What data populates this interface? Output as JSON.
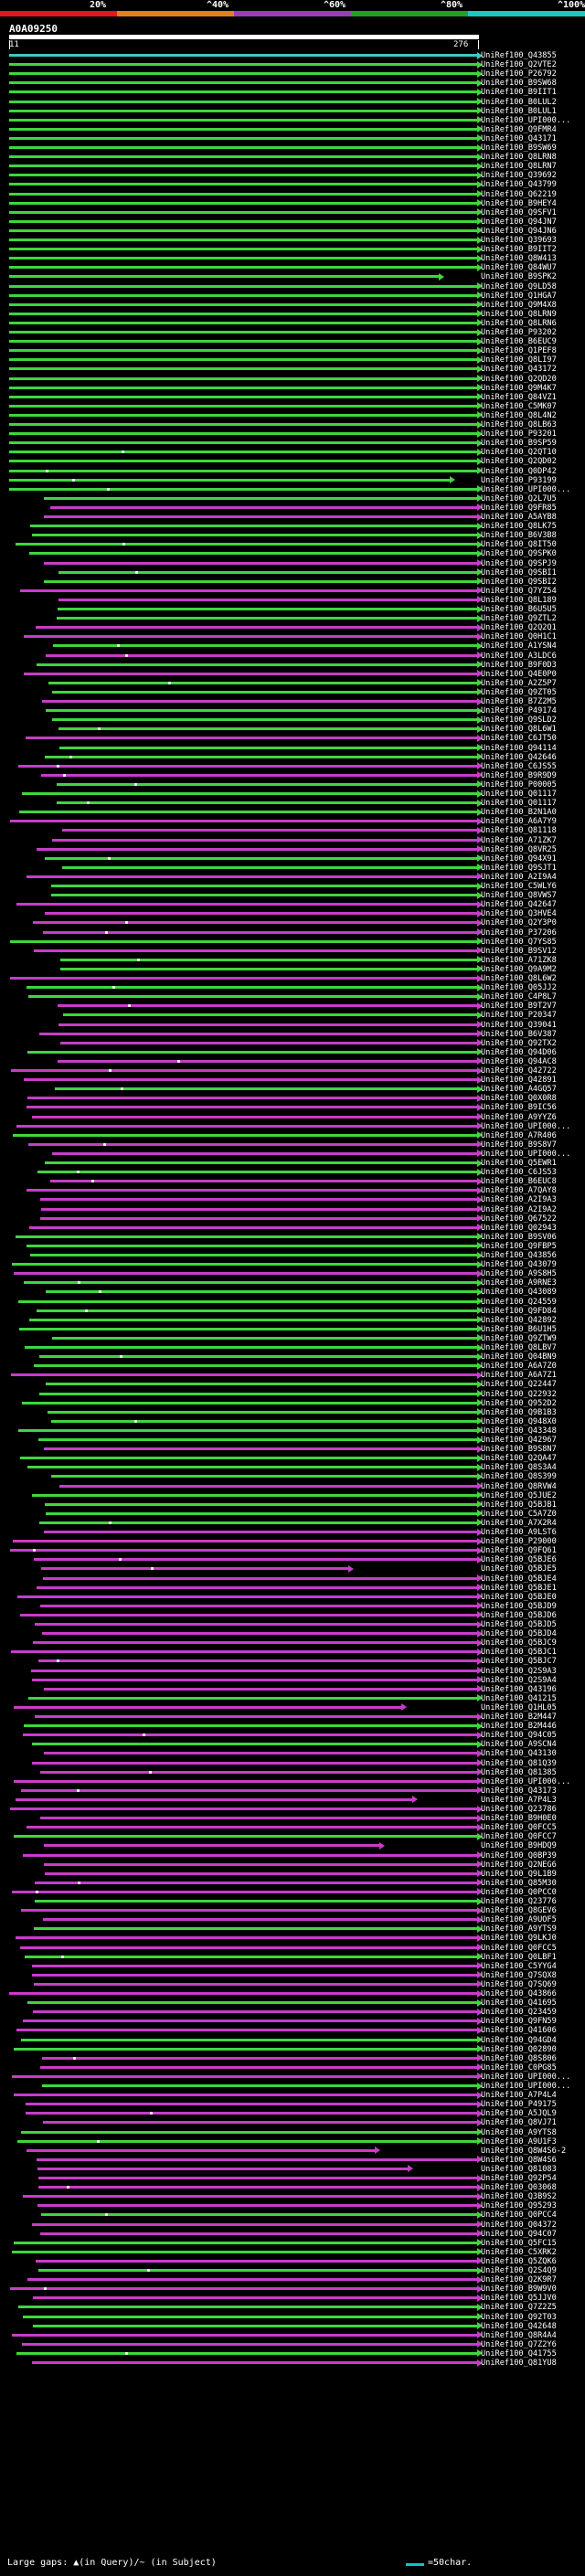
{
  "legend": {
    "labels": [
      "20%",
      "^40%",
      "^60%",
      "^80%",
      "^100%"
    ],
    "colors": [
      "#e01818",
      "#e08020",
      "#9b3db8",
      "#22a022",
      "#18c8c8"
    ]
  },
  "query": {
    "id": "A0A09250",
    "start": "11",
    "end": "276"
  },
  "colors": {
    "green": "#3ed63e",
    "magenta": "#c83cc8",
    "cyan": "#40c8c8"
  },
  "hits": [
    "UniRef100_Q43855",
    "UniRef100_Q2VTE2",
    "UniRef100_P26792",
    "UniRef100_B9SW68",
    "UniRef100_B9IIT1",
    "UniRef100_B0LUL2",
    "UniRef100_B0LUL1",
    "UniRef100_UPI000...",
    "UniRef100_Q9FMR4",
    "UniRef100_Q43171",
    "UniRef100_B9SW69",
    "UniRef100_Q8LRN8",
    "UniRef100_Q8LRN7",
    "UniRef100_Q39692",
    "UniRef100_Q43799",
    "UniRef100_Q62219",
    "UniRef100_B9HEY4",
    "UniRef100_Q9SFV1",
    "UniRef100_Q94JN7",
    "UniRef100_Q94JN6",
    "UniRef100_Q39693",
    "UniRef100_B9IIT2",
    "UniRef100_Q8W413",
    "UniRef100_Q84WU7",
    "UniRef100_B9SPK2",
    "UniRef100_Q9LD58",
    "UniRef100_Q1HGA7",
    "UniRef100_Q9M4X8",
    "UniRef100_Q8LRN9",
    "UniRef100_Q8LRN6",
    "UniRef100_P93202",
    "UniRef100_B6EUC9",
    "UniRef100_Q1PEF8",
    "UniRef100_Q8LI97",
    "UniRef100_Q43172",
    "UniRef100_Q2QD20",
    "UniRef100_Q9M4K7",
    "UniRef100_Q84VZ1",
    "UniRef100_C5MK07",
    "UniRef100_Q8L4N2",
    "UniRef100_Q8LB63",
    "UniRef100_P93201",
    "UniRef100_B9SP59",
    "UniRef100_Q2QT10",
    "UniRef100_Q2QD02",
    "UniRef100_Q0DP42",
    "UniRef100_P93199",
    "UniRef100_UPI000...",
    "UniRef100_Q2L7U5",
    "UniRef100_Q9FR85",
    "UniRef100_A5AYB8",
    "UniRef100_Q8LK75",
    "UniRef100_B6V3B8",
    "UniRef100_Q8IT50",
    "UniRef100_Q9SPK0",
    "UniRef100_Q9SPJ9",
    "UniRef100_Q9SBI1",
    "UniRef100_Q9SBI2",
    "UniRef100_Q7YZ54",
    "UniRef100_Q8L189",
    "UniRef100_B6U5U5",
    "UniRef100_Q9ZTL2",
    "UniRef100_Q2Q2Q1",
    "UniRef100_Q0H1C1",
    "UniRef100_A1YSN4",
    "UniRef100_A3LDC6",
    "UniRef100_B9F0D3",
    "UniRef100_Q4E0P0",
    "UniRef100_A2Z5P7",
    "UniRef100_Q9ZT05",
    "UniRef100_B7Z2M5",
    "UniRef100_P49174",
    "UniRef100_Q9SLD2",
    "UniRef100_Q8L6W1",
    "UniRef100_C6JT50",
    "UniRef100_Q94114",
    "UniRef100_Q42646",
    "UniRef100_C6JS55",
    "UniRef100_B9R9D9",
    "UniRef100_P00005",
    "UniRef100_Q01117",
    "UniRef100_Q01117",
    "UniRef100_B2N1A0",
    "UniRef100_A6A7Y9",
    "UniRef100_Q81118",
    "UniRef100_A71ZK7",
    "UniRef100_Q8VR25",
    "UniRef100_Q94X91",
    "UniRef100_Q9SJT1",
    "UniRef100_A2I9A4",
    "UniRef100_C5WLY6",
    "UniRef100_Q8VWS7",
    "UniRef100_Q42647",
    "UniRef100_Q3HVE4",
    "UniRef100_Q2Y3P0",
    "UniRef100_P37206",
    "UniRef100_Q7YS85",
    "UniRef100_B9SV12",
    "UniRef100_A71ZK8",
    "UniRef100_Q9A9M2",
    "UniRef100_Q8L6W2",
    "UniRef100_Q05JJ2",
    "UniRef100_C4P8L7",
    "UniRef100_B9T2V7",
    "UniRef100_P20347",
    "UniRef100_Q39041",
    "UniRef100_B6V387",
    "UniRef100_Q92TX2",
    "UniRef100_Q94D06",
    "UniRef100_Q94AC8",
    "UniRef100_Q42722",
    "UniRef100_Q42891",
    "UniRef100_A4GQ57",
    "UniRef100_Q0X0R8",
    "UniRef100_B9IC56",
    "UniRef100_A9YYZ6",
    "UniRef100_UPI000...",
    "UniRef100_A7R406",
    "UniRef100_B9S8V7",
    "UniRef100_UPI000...",
    "UniRef100_Q5EWR1",
    "UniRef100_C6JS53",
    "UniRef100_B6EUC8",
    "UniRef100_A7QAY8",
    "UniRef100_A2I9A3",
    "UniRef100_A2I9A2",
    "UniRef100_Q67522",
    "UniRef100_Q02943",
    "UniRef100_B9SV06",
    "UniRef100_Q9FBP5",
    "UniRef100_Q43856",
    "UniRef100_Q43079",
    "UniRef100_A9S8H5",
    "UniRef100_A9RNE3",
    "UniRef100_Q43089",
    "UniRef100_Q24559",
    "UniRef100_Q9FD84",
    "UniRef100_Q42892",
    "UniRef100_B6U1H5",
    "UniRef100_Q9ZTW9",
    "UniRef100_Q8LBV7",
    "UniRef100_Q04BN9",
    "UniRef100_A6A7Z0",
    "UniRef100_A6A7Z1",
    "UniRef100_Q22447",
    "UniRef100_Q22932",
    "UniRef100_Q952D2",
    "UniRef100_Q9B1B3",
    "UniRef100_Q948X0",
    "UniRef100_Q43348",
    "UniRef100_Q42967",
    "UniRef100_B9S8N7",
    "UniRef100_Q2QA47",
    "UniRef100_Q8S3A4",
    "UniRef100_Q8S399",
    "UniRef100_Q8RVW4",
    "UniRef100_Q5JUE2",
    "UniRef100_Q5BJB1",
    "UniRef100_C5A7Z0",
    "UniRef100_A7X2R4",
    "UniRef100_A9LST6",
    "UniRef100_P29000",
    "UniRef100_Q9FQ61",
    "UniRef100_Q5BJE6",
    "UniRef100_Q5BJE5",
    "UniRef100_Q5BJE4",
    "UniRef100_Q5BJE1",
    "UniRef100_Q5BJE0",
    "UniRef100_Q5BJD9",
    "UniRef100_Q5BJD6",
    "UniRef100_Q5BJD5",
    "UniRef100_Q5BJD4",
    "UniRef100_Q5BJC9",
    "UniRef100_Q5BJC1",
    "UniRef100_Q5BJC7",
    "UniRef100_Q2S9A3",
    "UniRef100_Q2S9A4",
    "UniRef100_Q43196",
    "UniRef100_Q41215",
    "UniRef100_Q1HL05",
    "UniRef100_B2M447",
    "UniRef100_B2M446",
    "UniRef100_Q94C05",
    "UniRef100_A9SCN4",
    "UniRef100_Q43130",
    "UniRef100_Q81Q39",
    "UniRef100_Q81385",
    "UniRef100_UPI000...",
    "UniRef100_Q43173",
    "UniRef100_A7P4L3",
    "UniRef100_Q23786",
    "UniRef100_B9H0E0",
    "UniRef100_Q0FCC5",
    "UniRef100_Q0FCC7",
    "UniRef100_B9HDQ9",
    "UniRef100_Q0BP39",
    "UniRef100_Q2NEG6",
    "UniRef100_Q9L1B9",
    "UniRef100_Q85M30",
    "UniRef100_Q0PCC0",
    "UniRef100_Q23776",
    "UniRef100_Q8GEV6",
    "UniRef100_A9UOF5",
    "UniRef100_A9YTS9",
    "UniRef100_Q9LKJ0",
    "UniRef100_Q0FCC5",
    "UniRef100_Q0LBF1",
    "UniRef100_C5YYG4",
    "UniRef100_Q7SQX8",
    "UniRef100_Q7SQ69",
    "UniRef100_Q43866",
    "UniRef100_Q41695",
    "UniRef100_Q23459",
    "UniRef100_Q9FN59",
    "UniRef100_Q41606",
    "UniRef100_Q94GD4",
    "UniRef100_Q02890",
    "UniRef100_Q8S806",
    "UniRef100_C0PG85",
    "UniRef100_UPI000...",
    "UniRef100_UPI000...",
    "UniRef100_A7P4L4",
    "UniRef100_P49175",
    "UniRef100_A5JQL9",
    "UniRef100_Q8VJ71",
    "UniRef100_A9YTS8",
    "UniRef100_A9U1F3",
    "UniRef100_Q8W4S6-2",
    "UniRef100_Q8W4S6",
    "UniRef100_Q81083",
    "UniRef100_Q92P54",
    "UniRef100_Q03068",
    "UniRef100_Q3B9S2",
    "UniRef100_Q95293",
    "UniRef100_Q0PCC4",
    "UniRef100_Q04372",
    "UniRef100_Q94C07",
    "UniRef100_Q5FC15",
    "UniRef100_C5XRK2",
    "UniRef100_Q5ZQK6",
    "UniRef100_Q2S4Q9",
    "UniRef100_Q2K9R7",
    "UniRef100_B9W9V0",
    "UniRef100_Q5JJV0",
    "UniRef100_Q7Z2Z5",
    "UniRef100_Q92T03",
    "UniRef100_Q42648",
    "UniRef100_Q8R4A4",
    "UniRef100_Q7Z2Y6",
    "UniRef100_Q41755",
    "UniRef100_Q81YU8"
  ],
  "footer": {
    "text": "Large gaps: ▲(in Query)/~ (in Subject)",
    "scale_label": "=50char."
  }
}
